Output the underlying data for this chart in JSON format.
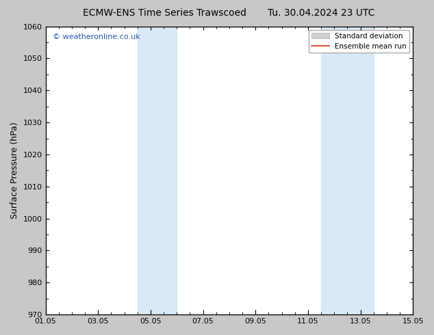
{
  "title_left": "ECMW-ENS Time Series Trawscoed",
  "title_right": "Tu. 30.04.2024 23 UTC",
  "ylabel": "Surface Pressure (hPa)",
  "ylim": [
    970,
    1060
  ],
  "yticks": [
    970,
    980,
    990,
    1000,
    1010,
    1020,
    1030,
    1040,
    1050,
    1060
  ],
  "xlim_start": 0,
  "xlim_end": 14,
  "xtick_labels": [
    "01.05",
    "03.05",
    "05.05",
    "07.05",
    "09.05",
    "11.05",
    "13.05",
    "15.05"
  ],
  "xtick_positions": [
    0,
    2,
    4,
    6,
    8,
    10,
    12,
    14
  ],
  "shaded_regions": [
    {
      "x_start": 3.5,
      "x_end": 5.0,
      "color": "#d8eaf8"
    },
    {
      "x_start": 10.5,
      "x_end": 12.5,
      "color": "#d8eaf8"
    }
  ],
  "watermark_text": "© weatheronline.co.uk",
  "watermark_color": "#2255bb",
  "legend_std_color": "#d0d0d0",
  "legend_mean_color": "#dd2200",
  "figure_bg_color": "#c8c8c8",
  "plot_bg_color": "#ffffff",
  "title_fontsize": 10,
  "axis_label_fontsize": 9,
  "tick_fontsize": 8,
  "legend_fontsize": 7.5
}
